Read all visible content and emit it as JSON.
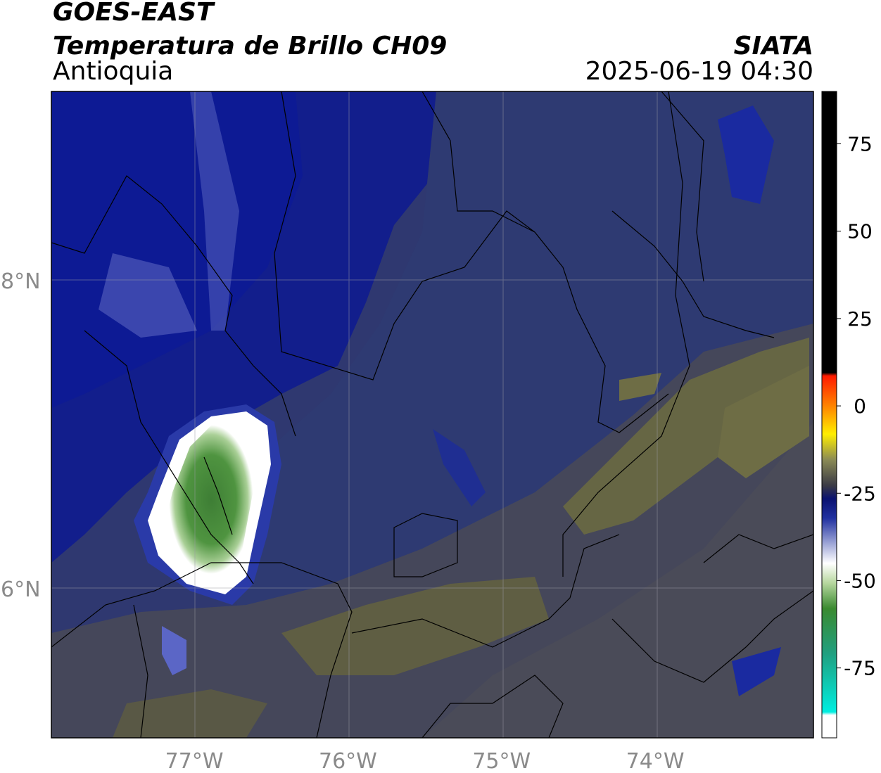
{
  "header": {
    "line1": "GOES-EAST",
    "line2": "Temperatura de Brillo CH09",
    "line3": "Antioquia",
    "org": "SIATA",
    "datetime": "2025-06-19 04:30"
  },
  "map": {
    "lon_range": [
      -77.93,
      -72.97
    ],
    "lat_range": [
      5.03,
      9.23
    ],
    "lon_ticks": [
      {
        "value": -77,
        "label": "77°W"
      },
      {
        "value": -76,
        "label": "76°W"
      },
      {
        "value": -75,
        "label": "75°W"
      },
      {
        "value": -74,
        "label": "74°W"
      }
    ],
    "lat_ticks": [
      {
        "value": 8,
        "label": "8°N"
      },
      {
        "value": 6,
        "label": "6°N"
      }
    ],
    "colors": {
      "deep_blue": "#0f1f8a",
      "blue_grey": "#2d3a6e",
      "grey": "#4a4a55",
      "olive": "#6b6a45",
      "green": "#4a8a3a",
      "white": "#ffffff"
    }
  },
  "colorbar": {
    "ticks": [
      {
        "value": 75,
        "label": "75"
      },
      {
        "value": 50,
        "label": "50"
      },
      {
        "value": 25,
        "label": "25"
      },
      {
        "value": 0,
        "label": "0"
      },
      {
        "value": -25,
        "label": "-25"
      },
      {
        "value": -50,
        "label": "-50"
      },
      {
        "value": -75,
        "label": "-75"
      }
    ],
    "range": [
      -95,
      90
    ]
  }
}
